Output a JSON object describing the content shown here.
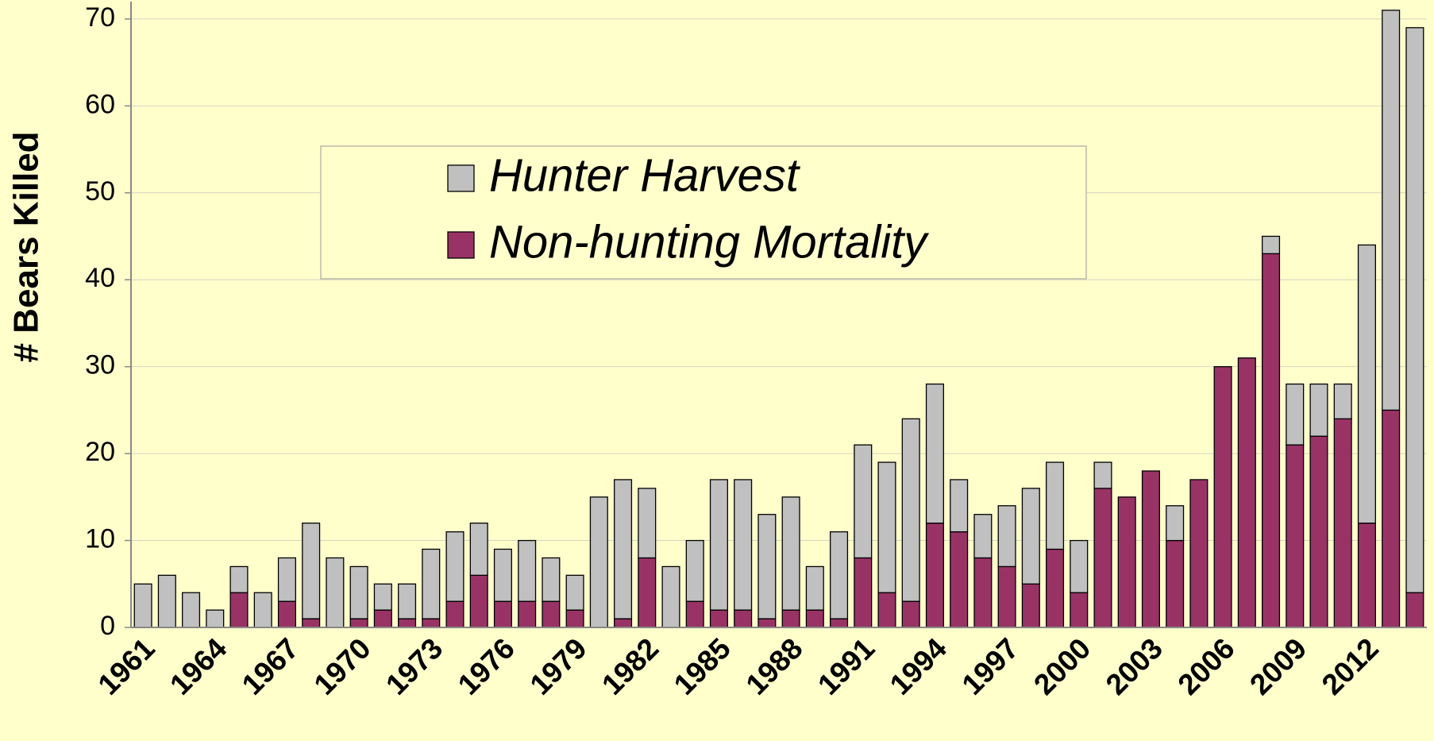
{
  "chart_data": {
    "type": "bar",
    "stacked": true,
    "ylabel": "# Bears Killed",
    "categories": [
      "1961",
      null,
      null,
      "1964",
      null,
      null,
      "1967",
      null,
      null,
      "1970",
      null,
      null,
      "1973",
      null,
      null,
      "1976",
      null,
      null,
      "1979",
      null,
      null,
      "1982",
      null,
      null,
      "1985",
      null,
      null,
      "1988",
      null,
      null,
      "1991",
      null,
      null,
      "1994",
      null,
      null,
      "1997",
      null,
      null,
      "2000",
      null,
      null,
      "2003",
      null,
      null,
      "2006",
      null,
      null,
      "2009",
      null,
      null,
      "2012",
      null,
      null
    ],
    "series": [
      {
        "name": "Non-hunting Mortality",
        "color": "#993366",
        "values": [
          0,
          0,
          0,
          0,
          4,
          0,
          3,
          1,
          0,
          1,
          2,
          1,
          1,
          3,
          6,
          3,
          3,
          3,
          2,
          0,
          1,
          8,
          0,
          3,
          2,
          2,
          1,
          2,
          2,
          1,
          8,
          4,
          3,
          12,
          11,
          8,
          7,
          5,
          9,
          4,
          16,
          15,
          18,
          10,
          17,
          30,
          31,
          43,
          21,
          22,
          24,
          12,
          25,
          4
        ]
      },
      {
        "name": "Hunter Harvest",
        "color": "#c0c0c0",
        "values": [
          5,
          6,
          4,
          2,
          3,
          4,
          5,
          11,
          8,
          6,
          3,
          4,
          8,
          8,
          6,
          6,
          7,
          5,
          4,
          15,
          16,
          8,
          7,
          7,
          15,
          15,
          12,
          13,
          5,
          10,
          13,
          15,
          21,
          16,
          6,
          5,
          7,
          11,
          10,
          6,
          3,
          0,
          0,
          4,
          0,
          0,
          0,
          2,
          7,
          6,
          4,
          32,
          46,
          65
        ]
      }
    ],
    "legend_order": [
      1,
      0
    ],
    "ylim": [
      0,
      72
    ],
    "yticks": [
      0,
      10,
      20,
      30,
      40,
      50,
      60,
      70
    ],
    "grid": true
  }
}
